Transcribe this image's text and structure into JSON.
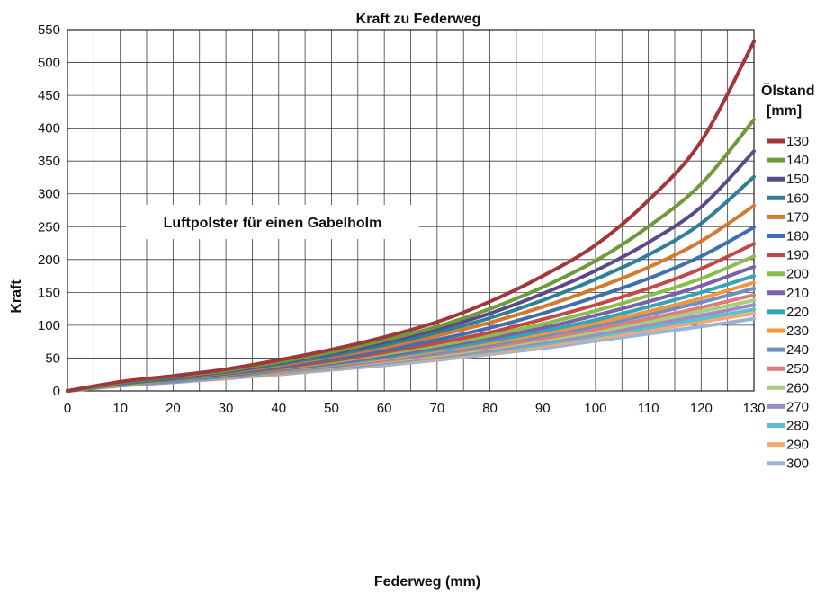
{
  "chart_data": {
    "type": "line",
    "title": "Kraft zu Federweg",
    "xlabel": "Federweg (mm)",
    "ylabel": "Kraft",
    "xlim": [
      0,
      130
    ],
    "ylim": [
      0,
      550
    ],
    "x_ticks": [
      "0",
      "10",
      "20",
      "30",
      "40",
      "50",
      "60",
      "70",
      "80",
      "90",
      "100",
      "110",
      "120",
      "130"
    ],
    "y_ticks": [
      "0",
      "50",
      "100",
      "150",
      "200",
      "250",
      "300",
      "350",
      "400",
      "450",
      "500",
      "550"
    ],
    "grid": true,
    "legend_title_line1": "Ölstand",
    "legend_title_line2": "[mm]",
    "legend_position": "right",
    "annotation": "Luftpolster für einen Gabelholm",
    "x": [
      0,
      10,
      20,
      30,
      40,
      50,
      60,
      70,
      80,
      90,
      100,
      110,
      120,
      130
    ],
    "series": [
      {
        "name": "130",
        "color": "#a0373a",
        "values": [
          0,
          14,
          23,
          33,
          47,
          63,
          82,
          105,
          136,
          175,
          222,
          290,
          380,
          532
        ]
      },
      {
        "name": "140",
        "color": "#6f9a3c",
        "values": [
          0,
          13,
          22,
          31,
          44,
          59,
          77,
          98,
          125,
          158,
          198,
          250,
          315,
          413
        ]
      },
      {
        "name": "150",
        "color": "#5a4a8a",
        "values": [
          0,
          13,
          21,
          30,
          43,
          57,
          74,
          94,
          118,
          148,
          183,
          226,
          280,
          365
        ]
      },
      {
        "name": "160",
        "color": "#2f7f96",
        "values": [
          0,
          12,
          20,
          29,
          41,
          54,
          70,
          89,
          111,
          138,
          170,
          207,
          255,
          326
        ]
      },
      {
        "name": "170",
        "color": "#d37a2e",
        "values": [
          0,
          12,
          20,
          28,
          39,
          52,
          66,
          84,
          104,
          128,
          156,
          188,
          228,
          282
        ]
      },
      {
        "name": "180",
        "color": "#3f6fb0",
        "values": [
          0,
          11,
          19,
          27,
          37,
          49,
          62,
          78,
          96,
          118,
          143,
          171,
          205,
          249
        ]
      },
      {
        "name": "190",
        "color": "#c4484a",
        "values": [
          0,
          11,
          18,
          26,
          35,
          46,
          59,
          73,
          89,
          109,
          131,
          156,
          186,
          224
        ]
      },
      {
        "name": "200",
        "color": "#8cbb4e",
        "values": [
          0,
          10,
          17,
          25,
          34,
          44,
          56,
          69,
          84,
          102,
          122,
          145,
          171,
          205
        ]
      },
      {
        "name": "210",
        "color": "#7a62a8",
        "values": [
          0,
          10,
          17,
          24,
          33,
          42,
          53,
          66,
          80,
          96,
          115,
          136,
          160,
          189
        ]
      },
      {
        "name": "220",
        "color": "#34a4bb",
        "values": [
          0,
          10,
          16,
          23,
          32,
          41,
          51,
          63,
          76,
          91,
          108,
          128,
          150,
          175
        ]
      },
      {
        "name": "230",
        "color": "#f2953d",
        "values": [
          0,
          9,
          16,
          23,
          31,
          40,
          49,
          61,
          73,
          87,
          103,
          121,
          141,
          165
        ]
      },
      {
        "name": "240",
        "color": "#6f8fc4",
        "values": [
          0,
          9,
          15,
          22,
          30,
          38,
          48,
          58,
          70,
          84,
          99,
          116,
          135,
          156
        ]
      },
      {
        "name": "250",
        "color": "#d87e7f",
        "values": [
          0,
          9,
          15,
          22,
          29,
          37,
          46,
          56,
          67,
          80,
          94,
          110,
          127,
          146
        ]
      },
      {
        "name": "260",
        "color": "#a9cc7f",
        "values": [
          0,
          9,
          15,
          21,
          28,
          36,
          45,
          54,
          65,
          77,
          90,
          105,
          121,
          138
        ]
      },
      {
        "name": "270",
        "color": "#9c8ec0",
        "values": [
          0,
          8,
          14,
          20,
          27,
          35,
          43,
          52,
          62,
          74,
          86,
          100,
          115,
          131
        ]
      },
      {
        "name": "280",
        "color": "#5cc0d0",
        "values": [
          0,
          8,
          14,
          20,
          27,
          34,
          42,
          51,
          60,
          71,
          83,
          96,
          110,
          124
        ]
      },
      {
        "name": "290",
        "color": "#f7a870",
        "values": [
          0,
          8,
          14,
          19,
          26,
          33,
          41,
          49,
          58,
          68,
          80,
          92,
          105,
          118
        ]
      },
      {
        "name": "300",
        "color": "#9bb3d8",
        "values": [
          0,
          8,
          13,
          19,
          25,
          32,
          39,
          47,
          56,
          65,
          76,
          87,
          98,
          110
        ]
      }
    ]
  }
}
